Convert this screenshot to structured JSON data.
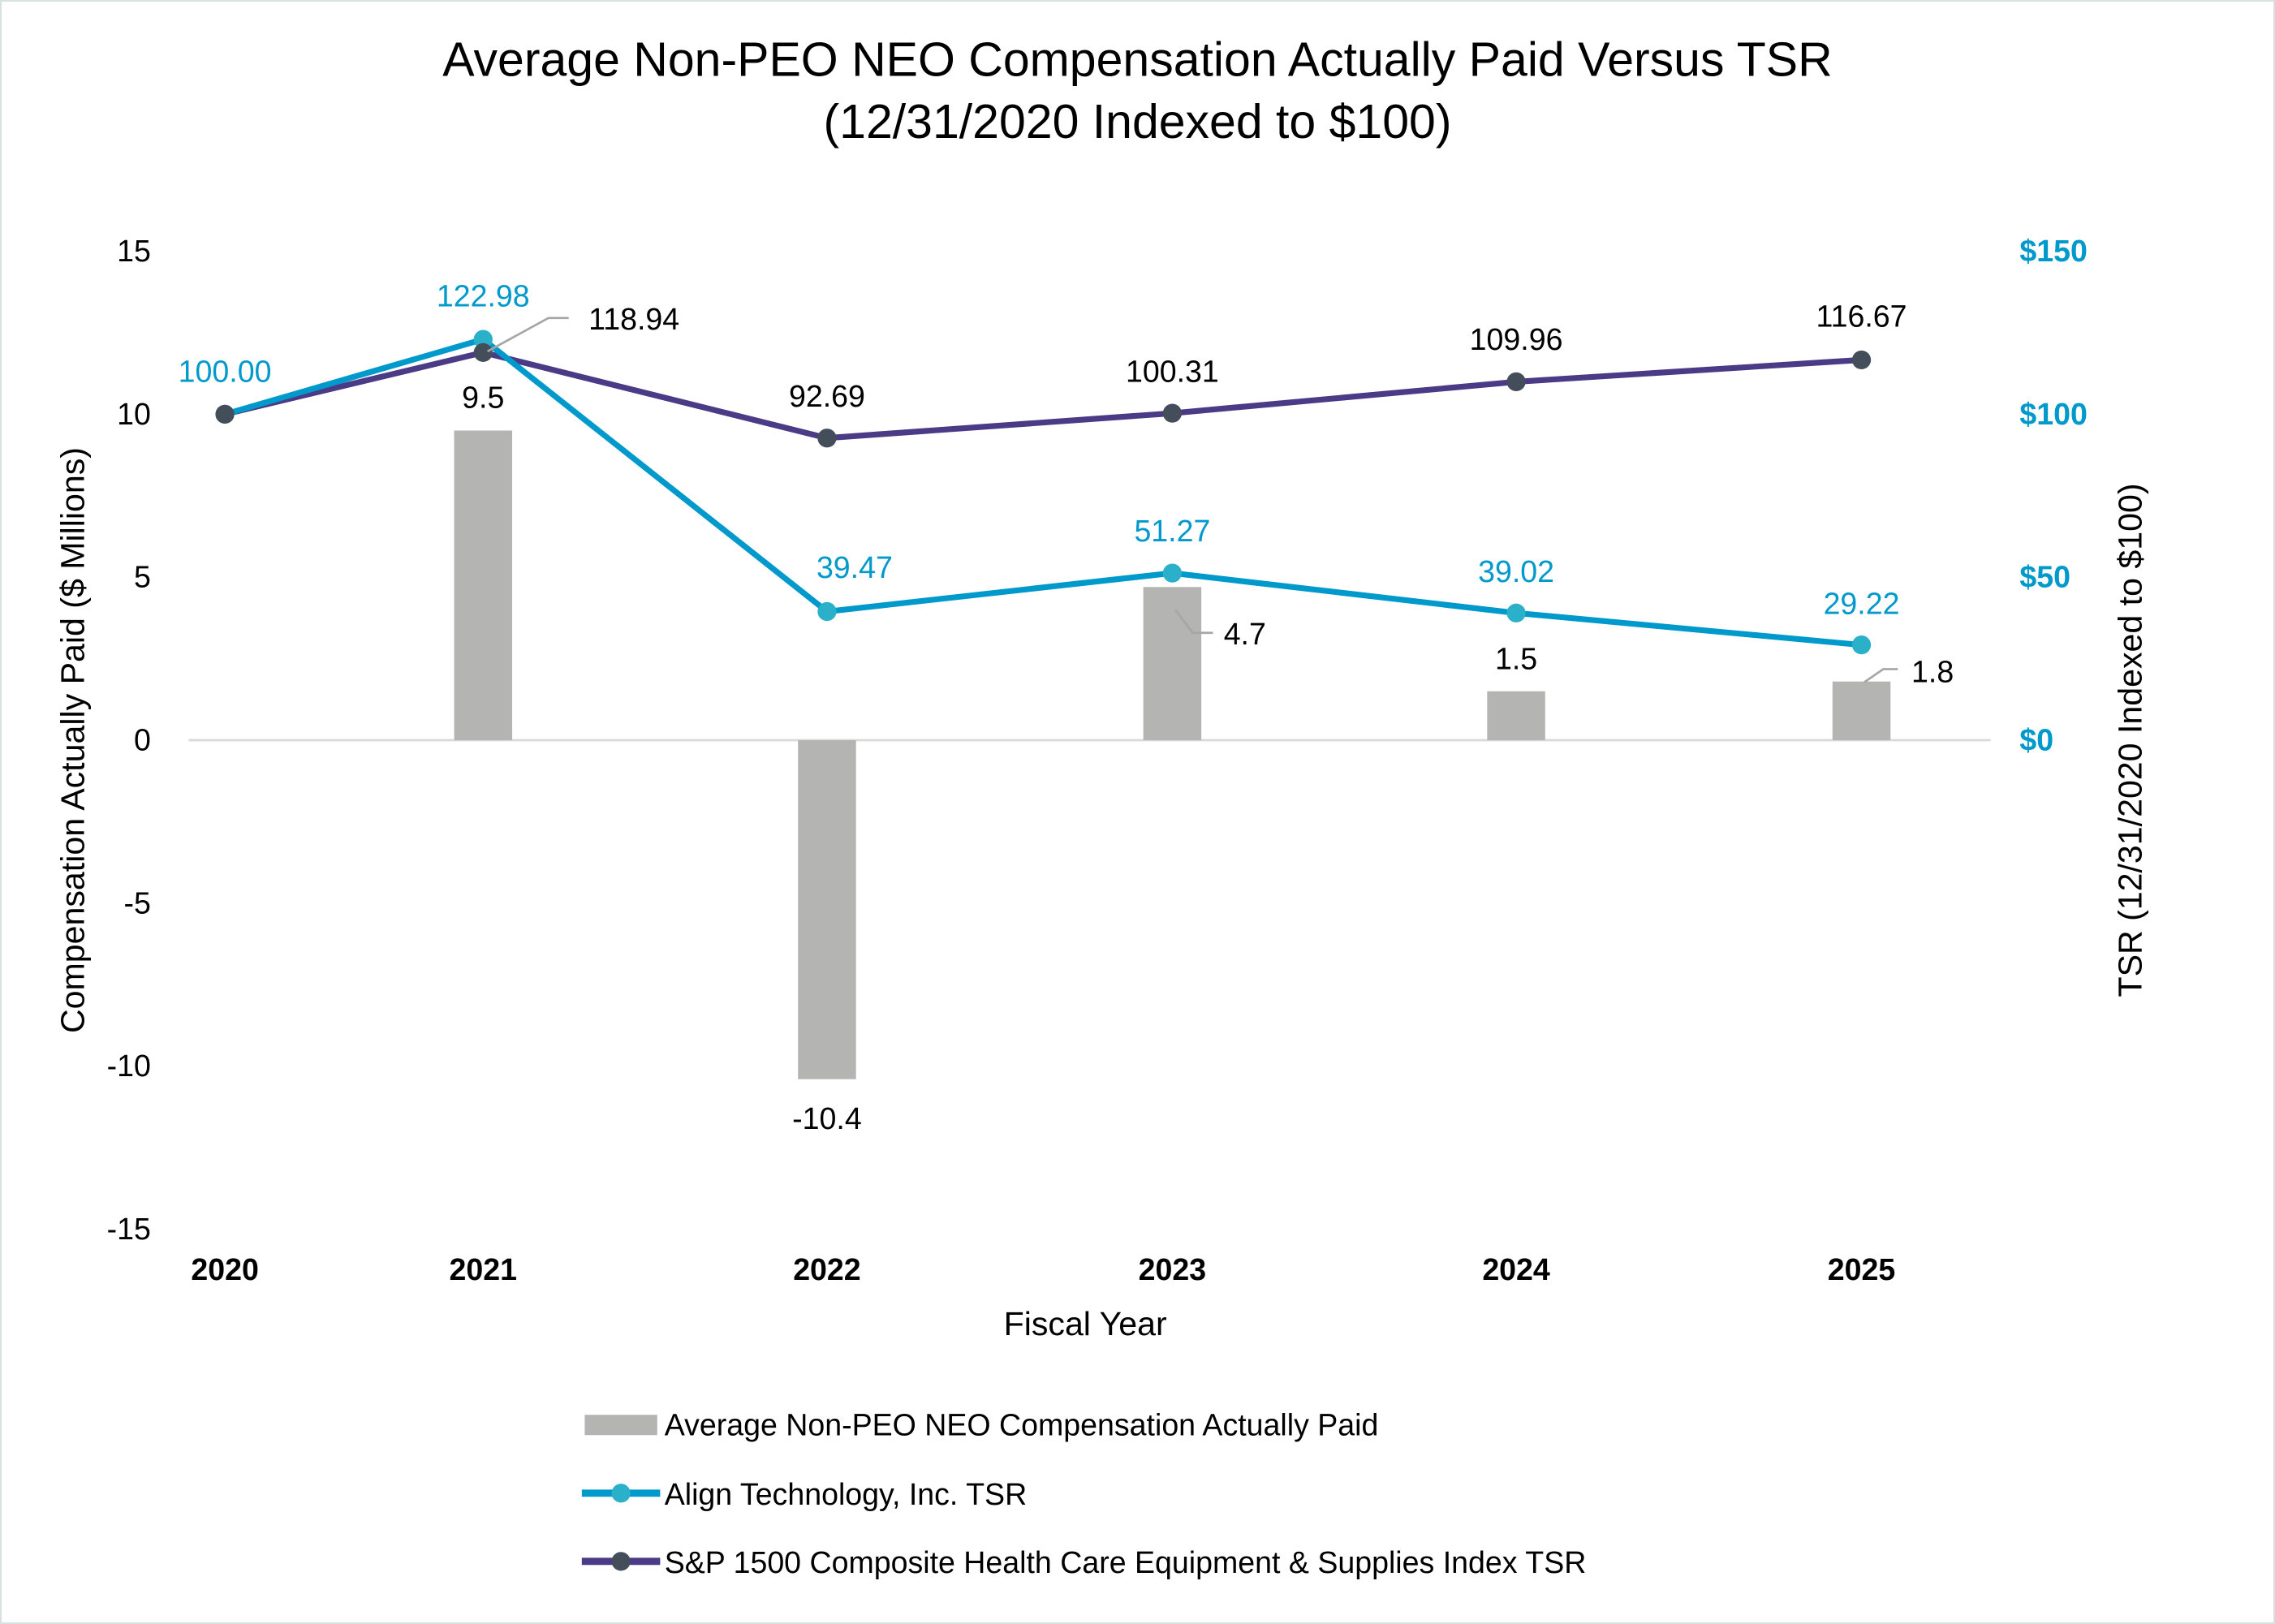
{
  "chart_data": {
    "type": "bar+line",
    "title": "Average Non-PEO NEO Compensation Actually Paid Versus TSR",
    "subtitle": "(12/31/2020 Indexed to $100)",
    "xlabel": "Fiscal Year",
    "ylabel": "Compensation Actually Paid ($ Millions)",
    "y2label": "TSR (12/31/2020 Indexed to $100)",
    "categories": [
      "2020",
      "2021",
      "2022",
      "2023",
      "2024",
      "2025"
    ],
    "ylim": [
      -15,
      15
    ],
    "yticks": [
      15,
      10,
      5,
      0,
      -5,
      -10,
      -15
    ],
    "ytick_labels": [
      "15",
      "10",
      "5",
      "0",
      "-5",
      "-10",
      "-15"
    ],
    "y2lim": [
      -150,
      150
    ],
    "y2ticks": [
      150,
      100,
      50,
      0
    ],
    "y2tick_labels": [
      "$150",
      "$100",
      "$50",
      "$0"
    ],
    "grid": false,
    "legend_position": "bottom",
    "series": [
      {
        "name": "Average Non-PEO NEO Compensation Actually Paid",
        "type": "bar",
        "axis": "left",
        "color": "#b4b5b3",
        "values": [
          null,
          9.5,
          -10.4,
          4.7,
          1.5,
          1.8
        ],
        "labels": [
          "",
          "9.5",
          "-10.4",
          "4.7",
          "1.5",
          "1.8"
        ]
      },
      {
        "name": "Align Technology, Inc. TSR",
        "type": "line",
        "axis": "right",
        "color": "#0099cc",
        "marker_color": "#2ab0c8",
        "label_color": "#0099cc",
        "values": [
          100.0,
          122.98,
          39.47,
          51.27,
          39.02,
          29.22
        ],
        "labels": [
          "100.00",
          "122.98",
          "39.47",
          "51.27",
          "39.02",
          "29.22"
        ]
      },
      {
        "name": "S&P 1500 Composite Health Care Equipment & Supplies Index TSR",
        "type": "line",
        "axis": "right",
        "color": "#4b3a86",
        "marker_color": "#444e5a",
        "label_color": "#000000",
        "values": [
          100.0,
          118.94,
          92.69,
          100.31,
          109.96,
          116.67
        ],
        "labels": [
          "",
          "118.94",
          "92.69",
          "100.31",
          "109.96",
          "116.67"
        ]
      }
    ]
  }
}
